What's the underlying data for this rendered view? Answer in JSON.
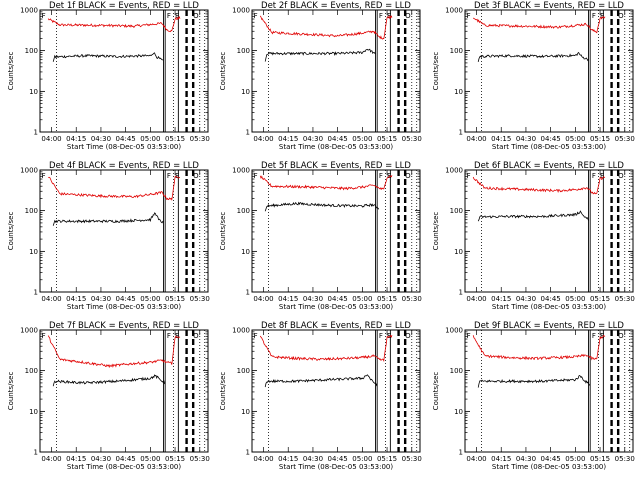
{
  "figure": {
    "series_colors": {
      "events": "#000000",
      "lld": "#e00000"
    }
  },
  "chart_data": [
    {
      "type": "line",
      "title": "Det 1f BLACK = Events, RED = LLD",
      "xlabel": "Start Time (08-Dec-05 03:53:00)",
      "ylabel": "Counts/sec",
      "x_ticks": [
        "04:00",
        "04:15",
        "04:30",
        "04:45",
        "05:00",
        "05:15",
        "05:30"
      ],
      "y_ticks": [
        "1",
        "10",
        "100",
        "1000"
      ],
      "yscale": "log",
      "ylim": [
        1,
        1000
      ],
      "series": [
        {
          "color": "#e00000",
          "points": [
            [
              "03:58",
              600
            ],
            [
              "04:05",
              430
            ],
            [
              "04:30",
              420
            ],
            [
              "04:50",
              400
            ],
            [
              "05:00",
              440
            ],
            [
              "05:07",
              470
            ],
            [
              "05:10",
              330
            ],
            [
              "05:13",
              300
            ],
            [
              "05:15",
              600
            ],
            [
              "05:18",
              640
            ]
          ]
        },
        {
          "color": "#000000",
          "points": [
            [
              "04:01",
              55
            ],
            [
              "04:02",
              70
            ],
            [
              "04:20",
              75
            ],
            [
              "04:40",
              72
            ],
            [
              "05:00",
              75
            ],
            [
              "05:02",
              90
            ],
            [
              "05:04",
              70
            ],
            [
              "05:08",
              55
            ]
          ]
        }
      ]
    },
    {
      "type": "line",
      "title": "Det 2f BLACK = Events, RED = LLD",
      "xlabel": "Start Time (08-Dec-05 03:53:00)",
      "ylabel": "Counts/sec",
      "x_ticks": [
        "04:00",
        "04:15",
        "04:30",
        "04:45",
        "05:00",
        "05:15",
        "05:30"
      ],
      "y_ticks": [
        "1",
        "10",
        "100",
        "1000"
      ],
      "yscale": "log",
      "ylim": [
        1,
        1000
      ],
      "series": [
        {
          "color": "#e00000",
          "points": [
            [
              "03:58",
              700
            ],
            [
              "04:05",
              280
            ],
            [
              "04:30",
              250
            ],
            [
              "04:45",
              230
            ],
            [
              "05:00",
              270
            ],
            [
              "05:07",
              300
            ],
            [
              "05:10",
              220
            ],
            [
              "05:13",
              200
            ],
            [
              "05:15",
              650
            ],
            [
              "05:18",
              700
            ]
          ]
        },
        {
          "color": "#000000",
          "points": [
            [
              "04:01",
              55
            ],
            [
              "04:02",
              85
            ],
            [
              "04:20",
              85
            ],
            [
              "04:45",
              85
            ],
            [
              "05:00",
              90
            ],
            [
              "05:03",
              110
            ],
            [
              "05:05",
              100
            ],
            [
              "05:08",
              80
            ]
          ]
        }
      ]
    },
    {
      "type": "line",
      "title": "Det 3f BLACK = Events, RED = LLD",
      "xlabel": "Start Time (08-Dec-05 03:53:00)",
      "ylabel": "Counts/sec",
      "x_ticks": [
        "04:00",
        "04:15",
        "04:30",
        "04:45",
        "05:00",
        "05:15",
        "05:30"
      ],
      "y_ticks": [
        "1",
        "10",
        "100",
        "1000"
      ],
      "yscale": "log",
      "ylim": [
        1,
        1000
      ],
      "series": [
        {
          "color": "#e00000",
          "points": [
            [
              "03:58",
              650
            ],
            [
              "04:05",
              420
            ],
            [
              "04:30",
              400
            ],
            [
              "04:50",
              380
            ],
            [
              "05:00",
              420
            ],
            [
              "05:07",
              450
            ],
            [
              "05:10",
              320
            ],
            [
              "05:13",
              290
            ],
            [
              "05:15",
              620
            ],
            [
              "05:18",
              660
            ]
          ]
        },
        {
          "color": "#000000",
          "points": [
            [
              "04:01",
              55
            ],
            [
              "04:02",
              72
            ],
            [
              "04:20",
              75
            ],
            [
              "04:40",
              72
            ],
            [
              "05:00",
              76
            ],
            [
              "05:02",
              88
            ],
            [
              "05:04",
              70
            ],
            [
              "05:08",
              60
            ]
          ]
        }
      ]
    },
    {
      "type": "line",
      "title": "Det 4f BLACK = Events, RED = LLD",
      "xlabel": "Start Time (08-Dec-05 03:53:00)",
      "ylabel": "Counts/sec",
      "x_ticks": [
        "04:00",
        "04:15",
        "04:30",
        "04:45",
        "05:00",
        "05:15",
        "05:30"
      ],
      "y_ticks": [
        "1",
        "10",
        "100",
        "1000"
      ],
      "yscale": "log",
      "ylim": [
        1,
        1000
      ],
      "series": [
        {
          "color": "#e00000",
          "points": [
            [
              "03:58",
              700
            ],
            [
              "04:05",
              260
            ],
            [
              "04:30",
              230
            ],
            [
              "04:50",
              220
            ],
            [
              "05:00",
              250
            ],
            [
              "05:07",
              280
            ],
            [
              "05:10",
              200
            ],
            [
              "05:13",
              190
            ],
            [
              "05:15",
              650
            ],
            [
              "05:18",
              700
            ]
          ]
        },
        {
          "color": "#000000",
          "points": [
            [
              "04:01",
              45
            ],
            [
              "04:02",
              55
            ],
            [
              "04:20",
              55
            ],
            [
              "04:40",
              55
            ],
            [
              "05:00",
              60
            ],
            [
              "05:03",
              90
            ],
            [
              "05:05",
              60
            ],
            [
              "05:08",
              50
            ]
          ]
        }
      ]
    },
    {
      "type": "line",
      "title": "Det 5f BLACK = Events, RED = LLD",
      "xlabel": "Start Time (08-Dec-05 03:53:00)",
      "ylabel": "Counts/sec",
      "x_ticks": [
        "04:00",
        "04:15",
        "04:30",
        "04:45",
        "05:00",
        "05:15",
        "05:30"
      ],
      "y_ticks": [
        "1",
        "10",
        "100",
        "1000"
      ],
      "yscale": "log",
      "ylim": [
        1,
        1000
      ],
      "series": [
        {
          "color": "#e00000",
          "points": [
            [
              "03:58",
              700
            ],
            [
              "04:05",
              400
            ],
            [
              "04:30",
              380
            ],
            [
              "04:50",
              350
            ],
            [
              "05:00",
              380
            ],
            [
              "05:07",
              420
            ],
            [
              "05:10",
              360
            ],
            [
              "05:13",
              330
            ],
            [
              "05:15",
              680
            ],
            [
              "05:18",
              720
            ]
          ]
        },
        {
          "color": "#000000",
          "points": [
            [
              "04:01",
              95
            ],
            [
              "04:02",
              130
            ],
            [
              "04:20",
              150
            ],
            [
              "04:40",
              135
            ],
            [
              "05:00",
              130
            ],
            [
              "05:03",
              135
            ],
            [
              "05:06",
              140
            ],
            [
              "05:10",
              115
            ]
          ]
        }
      ]
    },
    {
      "type": "line",
      "title": "Det 6f BLACK = Events, RED = LLD",
      "xlabel": "Start Time (08-Dec-05 03:53:00)",
      "ylabel": "Counts/sec",
      "x_ticks": [
        "04:00",
        "04:15",
        "04:30",
        "04:45",
        "05:00",
        "05:15",
        "05:30"
      ],
      "y_ticks": [
        "1",
        "10",
        "100",
        "1000"
      ],
      "yscale": "log",
      "ylim": [
        1,
        1000
      ],
      "series": [
        {
          "color": "#e00000",
          "points": [
            [
              "03:58",
              650
            ],
            [
              "04:05",
              360
            ],
            [
              "04:30",
              330
            ],
            [
              "04:50",
              310
            ],
            [
              "05:00",
              330
            ],
            [
              "05:07",
              370
            ],
            [
              "05:10",
              280
            ],
            [
              "05:13",
              250
            ],
            [
              "05:15",
              620
            ],
            [
              "05:18",
              660
            ]
          ]
        },
        {
          "color": "#000000",
          "points": [
            [
              "04:01",
              55
            ],
            [
              "04:02",
              70
            ],
            [
              "04:20",
              72
            ],
            [
              "04:40",
              72
            ],
            [
              "05:00",
              80
            ],
            [
              "05:03",
              95
            ],
            [
              "05:05",
              75
            ],
            [
              "05:08",
              60
            ]
          ]
        }
      ]
    },
    {
      "type": "line",
      "title": "Det 7f BLACK = Events, RED = LLD",
      "xlabel": "Start Time (08-Dec-05 03:53:00)",
      "ylabel": "Counts/sec",
      "x_ticks": [
        "04:00",
        "04:15",
        "04:30",
        "04:45",
        "05:00",
        "05:15",
        "05:30"
      ],
      "y_ticks": [
        "1",
        "10",
        "100",
        "1000"
      ],
      "yscale": "log",
      "ylim": [
        1,
        1000
      ],
      "series": [
        {
          "color": "#e00000",
          "points": [
            [
              "03:58",
              700
            ],
            [
              "04:05",
              190
            ],
            [
              "04:20",
              160
            ],
            [
              "04:35",
              130
            ],
            [
              "04:50",
              150
            ],
            [
              "05:00",
              160
            ],
            [
              "05:07",
              180
            ],
            [
              "05:10",
              160
            ],
            [
              "05:13",
              150
            ],
            [
              "05:15",
              650
            ],
            [
              "05:18",
              700
            ]
          ]
        },
        {
          "color": "#000000",
          "points": [
            [
              "04:01",
              40
            ],
            [
              "04:02",
              55
            ],
            [
              "04:20",
              50
            ],
            [
              "04:40",
              55
            ],
            [
              "05:00",
              65
            ],
            [
              "05:03",
              75
            ],
            [
              "05:06",
              60
            ],
            [
              "05:09",
              50
            ]
          ]
        }
      ]
    },
    {
      "type": "line",
      "title": "Det 8f BLACK = Events, RED = LLD",
      "xlabel": "Start Time (08-Dec-05 03:53:00)",
      "ylabel": "Counts/sec",
      "x_ticks": [
        "04:00",
        "04:15",
        "04:30",
        "04:45",
        "05:00",
        "05:15",
        "05:30"
      ],
      "y_ticks": [
        "1",
        "10",
        "100",
        "1000"
      ],
      "yscale": "log",
      "ylim": [
        1,
        1000
      ],
      "series": [
        {
          "color": "#e00000",
          "points": [
            [
              "03:58",
              700
            ],
            [
              "04:05",
              220
            ],
            [
              "04:20",
              200
            ],
            [
              "04:35",
              190
            ],
            [
              "04:50",
              200
            ],
            [
              "05:00",
              210
            ],
            [
              "05:07",
              230
            ],
            [
              "05:10",
              190
            ],
            [
              "05:13",
              180
            ],
            [
              "05:15",
              650
            ],
            [
              "05:18",
              700
            ]
          ]
        },
        {
          "color": "#000000",
          "points": [
            [
              "04:01",
              40
            ],
            [
              "04:02",
              55
            ],
            [
              "04:20",
              55
            ],
            [
              "04:40",
              60
            ],
            [
              "05:00",
              65
            ],
            [
              "05:03",
              80
            ],
            [
              "05:06",
              55
            ],
            [
              "05:09",
              45
            ]
          ]
        }
      ]
    },
    {
      "type": "line",
      "title": "Det 9f BLACK = Events, RED = LLD",
      "xlabel": "Start Time (08-Dec-05 03:53:00)",
      "ylabel": "Counts/sec",
      "x_ticks": [
        "04:00",
        "04:15",
        "04:30",
        "04:45",
        "05:00",
        "05:15",
        "05:30"
      ],
      "y_ticks": [
        "1",
        "10",
        "100",
        "1000"
      ],
      "yscale": "log",
      "ylim": [
        1,
        1000
      ],
      "series": [
        {
          "color": "#e00000",
          "points": [
            [
              "03:58",
              700
            ],
            [
              "04:05",
              230
            ],
            [
              "04:20",
              210
            ],
            [
              "04:35",
              200
            ],
            [
              "04:50",
              210
            ],
            [
              "05:00",
              220
            ],
            [
              "05:07",
              240
            ],
            [
              "05:10",
              200
            ],
            [
              "05:13",
              190
            ],
            [
              "05:15",
              650
            ],
            [
              "05:18",
              700
            ]
          ]
        },
        {
          "color": "#000000",
          "points": [
            [
              "04:01",
              40
            ],
            [
              "04:02",
              55
            ],
            [
              "04:20",
              55
            ],
            [
              "04:40",
              55
            ],
            [
              "05:00",
              60
            ],
            [
              "05:03",
              75
            ],
            [
              "05:06",
              55
            ],
            [
              "05:09",
              45
            ]
          ]
        }
      ]
    }
  ]
}
